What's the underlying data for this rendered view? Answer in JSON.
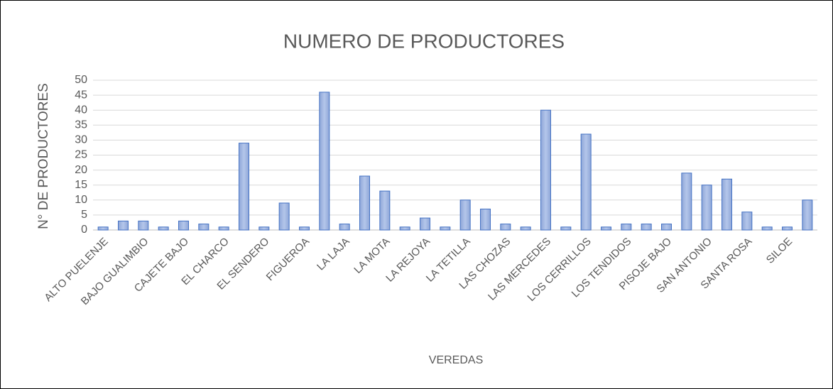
{
  "chart_data": {
    "type": "bar",
    "title": "NUMERO DE PRODUCTORES",
    "x_label": "VEREDAS",
    "y_label": "N° DE PRODUCTORES",
    "categories": [
      "ALTO PUELENJE",
      null,
      "BAJO GUALIMBIO",
      null,
      "CAJETE BAJO",
      null,
      "EL CHARCO",
      null,
      "EL SENDERO",
      null,
      "FIGUEROA",
      null,
      "LA LAJA",
      null,
      "LA MOTA",
      null,
      "LA REJOYA",
      null,
      "LA TETILLA",
      null,
      "LAS CHOZAS",
      null,
      "LAS MERCEDES",
      null,
      "LOS CERRILLOS",
      null,
      "LOS TENDIDOS",
      null,
      "PISOJE BAJO",
      null,
      "SAN ANTONIO",
      null,
      "SANTA ROSA",
      null,
      "SILOE",
      null
    ],
    "values": [
      1,
      3,
      3,
      1,
      3,
      2,
      1,
      29,
      1,
      9,
      1,
      46,
      2,
      18,
      13,
      1,
      4,
      1,
      10,
      7,
      2,
      1,
      40,
      1,
      32,
      1,
      2,
      2,
      2,
      19,
      15,
      17,
      6,
      1,
      1,
      10
    ],
    "color": "#4472c4",
    "ylim": [
      0,
      50
    ],
    "yticks": [
      0,
      5,
      10,
      15,
      20,
      25,
      30,
      35,
      40,
      45,
      50
    ],
    "grid": true
  }
}
